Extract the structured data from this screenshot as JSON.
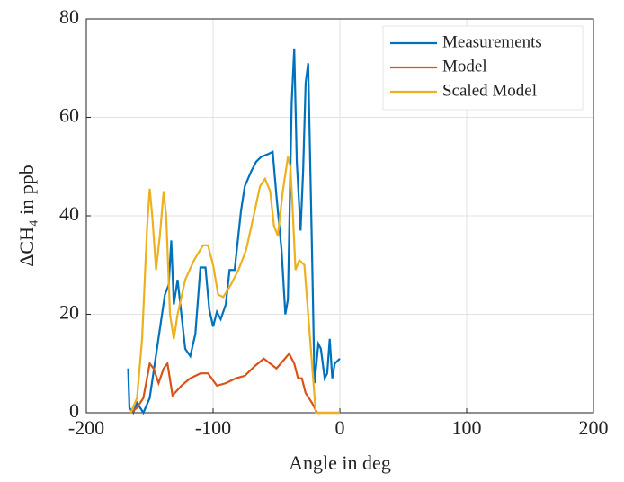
{
  "chart_data": {
    "type": "line",
    "xlabel": "Angle in deg",
    "ylabel": "ΔCH₄ in ppb",
    "xlim": [
      -200,
      200
    ],
    "xticks": [
      -200,
      -100,
      0,
      100,
      200
    ],
    "ylim": [
      0,
      80
    ],
    "yticks": [
      0,
      20,
      40,
      60,
      80
    ],
    "grid": true,
    "legend": "upper right",
    "series": [
      {
        "name": "Measurements",
        "color": "#0072bd",
        "x": [
          -167,
          -166,
          -163,
          -160,
          -155,
          -150,
          -146,
          -142,
          -138,
          -135,
          -133,
          -131,
          -128,
          -125,
          -122,
          -118,
          -114,
          -110,
          -106,
          -103,
          -100,
          -97,
          -94,
          -90,
          -87,
          -83,
          -78,
          -75,
          -70,
          -66,
          -62,
          -57,
          -53,
          -50,
          -46,
          -43,
          -41,
          -38,
          -36,
          -34,
          -31,
          -29,
          -27,
          -25,
          -22,
          -20,
          -17,
          -15,
          -12,
          -10,
          -8,
          -6,
          -4,
          0
        ],
        "values": [
          9,
          1,
          0,
          2,
          0,
          3,
          10,
          17,
          24,
          26,
          35,
          22,
          27,
          20,
          13,
          11.5,
          16,
          29.5,
          29.5,
          21,
          17.5,
          20.5,
          19,
          22,
          29,
          29,
          41,
          46,
          49,
          51,
          52,
          52.5,
          53,
          44,
          33,
          20,
          23,
          63,
          74,
          51,
          37,
          49,
          67,
          71,
          33,
          6,
          14,
          13,
          7,
          8,
          15,
          7,
          10,
          11
        ]
      },
      {
        "name": "Model",
        "color": "#d95319",
        "x": [
          -165,
          -160,
          -155,
          -150,
          -147,
          -143,
          -139,
          -136,
          -132,
          -125,
          -118,
          -110,
          -104,
          -97,
          -90,
          -82,
          -75,
          -67,
          -60,
          -55,
          -50,
          -45,
          -40,
          -36,
          -33,
          -30,
          -27,
          -22,
          -18,
          -10,
          0
        ],
        "values": [
          0,
          1,
          3,
          10,
          9,
          6,
          9,
          10,
          3.5,
          5.5,
          7,
          8,
          8,
          5.5,
          6,
          7,
          7.5,
          9.5,
          11,
          10,
          9,
          10.5,
          12,
          10,
          7,
          7,
          4,
          2,
          0,
          0,
          0
        ]
      },
      {
        "name": "Scaled Model",
        "color": "#edb120",
        "x": [
          -165,
          -160,
          -156,
          -152,
          -150,
          -148,
          -145,
          -142,
          -139,
          -137,
          -134,
          -131,
          -128,
          -122,
          -115,
          -108,
          -104,
          -100,
          -96,
          -92,
          -86,
          -80,
          -74,
          -68,
          -63,
          -59,
          -55,
          -52,
          -49,
          -45,
          -41,
          -39,
          -37,
          -35,
          -32,
          -28,
          -25,
          -22,
          -19,
          0
        ],
        "values": [
          0,
          3,
          15,
          38,
          45.5,
          40,
          29,
          36,
          45,
          40,
          20,
          15,
          20,
          27,
          31,
          34,
          34,
          30,
          24,
          23.5,
          26,
          29,
          33,
          40,
          46,
          47.5,
          45,
          38,
          36,
          45,
          52,
          50,
          40,
          29,
          31,
          30,
          20,
          10,
          0,
          0
        ]
      }
    ]
  }
}
